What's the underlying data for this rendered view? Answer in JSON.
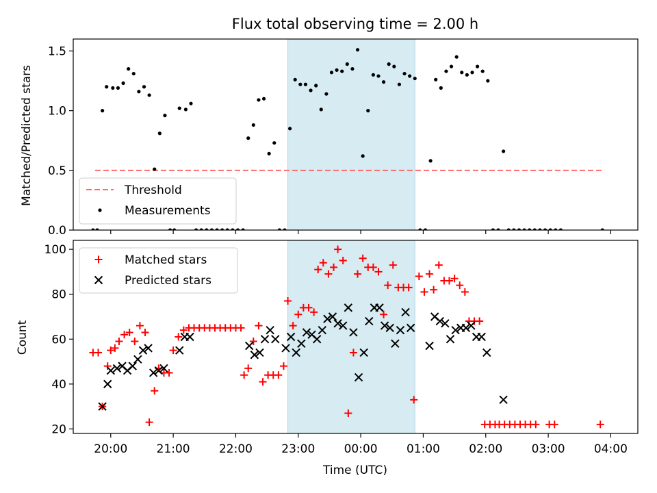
{
  "chart_data": [
    {
      "type": "scatter",
      "title": "Flux total observing time = 2.00 h",
      "xlabel": "",
      "ylabel": "Matched/Predicted stars",
      "xlim": [
        "19:24",
        "04:26"
      ],
      "ylim": [
        0,
        1.6
      ],
      "x_tick_labels": [
        "20:00",
        "21:00",
        "22:00",
        "23:00",
        "00:00",
        "01:00",
        "02:00",
        "03:00",
        "04:00"
      ],
      "y_ticks": [
        0.0,
        0.5,
        1.0,
        1.5
      ],
      "y_tick_labels": [
        "0.0",
        "0.5",
        "1.0",
        "1.5"
      ],
      "highlight": {
        "from": "22:50",
        "to": "00:52",
        "color": "#add8e6"
      },
      "threshold": {
        "name": "Threshold",
        "value": 0.5,
        "x_from": "19:45",
        "x_to": "03:54",
        "color": "#ff6b6b"
      },
      "series": [
        {
          "name": "Measurements",
          "color": "#000000",
          "points": [
            [
              "19:43",
              0
            ],
            [
              "19:47",
              0
            ],
            [
              "19:52",
              1.0
            ],
            [
              "19:56",
              1.2
            ],
            [
              "20:02",
              1.19
            ],
            [
              "20:07",
              1.19
            ],
            [
              "20:12",
              1.23
            ],
            [
              "20:17",
              1.35
            ],
            [
              "20:22",
              1.31
            ],
            [
              "20:27",
              1.16
            ],
            [
              "20:32",
              1.2
            ],
            [
              "20:37",
              1.13
            ],
            [
              "20:42",
              0.51
            ],
            [
              "20:47",
              0.81
            ],
            [
              "20:52",
              0.96
            ],
            [
              "20:57",
              0
            ],
            [
              "21:01",
              0
            ],
            [
              "21:06",
              1.02
            ],
            [
              "21:12",
              1.01
            ],
            [
              "21:17",
              1.06
            ],
            [
              "21:22",
              0
            ],
            [
              "21:27",
              0
            ],
            [
              "21:32",
              0
            ],
            [
              "21:37",
              0
            ],
            [
              "21:42",
              0
            ],
            [
              "21:47",
              0
            ],
            [
              "21:52",
              0
            ],
            [
              "21:57",
              0
            ],
            [
              "22:02",
              0
            ],
            [
              "22:07",
              0
            ],
            [
              "22:12",
              0.77
            ],
            [
              "22:17",
              0.88
            ],
            [
              "22:22",
              1.09
            ],
            [
              "22:27",
              1.1
            ],
            [
              "22:32",
              0.64
            ],
            [
              "22:37",
              0.73
            ],
            [
              "22:42",
              0
            ],
            [
              "22:47",
              0
            ],
            [
              "22:52",
              0.85
            ],
            [
              "22:57",
              1.26
            ],
            [
              "23:02",
              1.22
            ],
            [
              "23:07",
              1.22
            ],
            [
              "23:12",
              1.17
            ],
            [
              "23:17",
              1.21
            ],
            [
              "23:22",
              1.01
            ],
            [
              "23:27",
              1.14
            ],
            [
              "23:32",
              1.32
            ],
            [
              "23:37",
              1.34
            ],
            [
              "23:42",
              1.33
            ],
            [
              "23:47",
              1.39
            ],
            [
              "23:52",
              1.35
            ],
            [
              "23:57",
              1.51
            ],
            [
              "00:02",
              0.62
            ],
            [
              "00:07",
              1.0
            ],
            [
              "00:12",
              1.3
            ],
            [
              "00:17",
              1.29
            ],
            [
              "00:22",
              1.24
            ],
            [
              "00:27",
              1.39
            ],
            [
              "00:32",
              1.37
            ],
            [
              "00:37",
              1.22
            ],
            [
              "00:42",
              1.31
            ],
            [
              "00:47",
              1.29
            ],
            [
              "00:52",
              1.27
            ],
            [
              "00:57",
              0
            ],
            [
              "01:02",
              0
            ],
            [
              "01:07",
              0.58
            ],
            [
              "01:12",
              1.26
            ],
            [
              "01:17",
              1.19
            ],
            [
              "01:22",
              1.33
            ],
            [
              "01:27",
              1.37
            ],
            [
              "01:32",
              1.45
            ],
            [
              "01:37",
              1.32
            ],
            [
              "01:42",
              1.3
            ],
            [
              "01:47",
              1.32
            ],
            [
              "01:52",
              1.37
            ],
            [
              "01:57",
              1.33
            ],
            [
              "02:02",
              1.25
            ],
            [
              "02:07",
              0
            ],
            [
              "02:12",
              0
            ],
            [
              "02:17",
              0.66
            ],
            [
              "02:22",
              0
            ],
            [
              "02:27",
              0
            ],
            [
              "02:32",
              0
            ],
            [
              "02:37",
              0
            ],
            [
              "02:42",
              0
            ],
            [
              "02:47",
              0
            ],
            [
              "02:52",
              0
            ],
            [
              "02:57",
              0
            ],
            [
              "03:02",
              0
            ],
            [
              "03:07",
              0
            ],
            [
              "03:12",
              0
            ],
            [
              "03:52",
              0
            ]
          ]
        }
      ],
      "legend": {
        "position": "lower-left",
        "entries": [
          "Threshold",
          "Measurements"
        ]
      }
    },
    {
      "type": "scatter",
      "title": "",
      "xlabel": "Time (UTC)",
      "ylabel": "Count",
      "xlim": [
        "19:24",
        "04:26"
      ],
      "ylim": [
        18,
        104
      ],
      "x_tick_labels": [
        "20:00",
        "21:00",
        "22:00",
        "23:00",
        "00:00",
        "01:00",
        "02:00",
        "03:00",
        "04:00"
      ],
      "y_ticks": [
        20,
        40,
        60,
        80,
        100
      ],
      "y_tick_labels": [
        "20",
        "40",
        "60",
        "80",
        "100"
      ],
      "highlight": {
        "from": "22:50",
        "to": "00:52",
        "color": "#add8e6"
      },
      "series": [
        {
          "name": "Matched stars",
          "marker": "+",
          "color": "#ff0000",
          "points": [
            [
              "19:43",
              54
            ],
            [
              "19:48",
              54
            ],
            [
              "19:52",
              30
            ],
            [
              "19:57",
              48
            ],
            [
              "20:00",
              55
            ],
            [
              "20:04",
              56
            ],
            [
              "20:08",
              59
            ],
            [
              "20:13",
              62
            ],
            [
              "20:18",
              63
            ],
            [
              "20:23",
              59
            ],
            [
              "20:28",
              66
            ],
            [
              "20:33",
              63
            ],
            [
              "20:37",
              23
            ],
            [
              "20:42",
              37
            ],
            [
              "20:46",
              47
            ],
            [
              "20:51",
              45
            ],
            [
              "20:56",
              45
            ],
            [
              "21:00",
              55
            ],
            [
              "21:05",
              61
            ],
            [
              "21:10",
              64
            ],
            [
              "21:15",
              65
            ],
            [
              "21:20",
              65
            ],
            [
              "21:25",
              65
            ],
            [
              "21:30",
              65
            ],
            [
              "21:35",
              65
            ],
            [
              "21:40",
              65
            ],
            [
              "21:45",
              65
            ],
            [
              "21:50",
              65
            ],
            [
              "21:55",
              65
            ],
            [
              "22:00",
              65
            ],
            [
              "22:05",
              65
            ],
            [
              "22:08",
              44
            ],
            [
              "22:12",
              47
            ],
            [
              "22:17",
              59
            ],
            [
              "22:22",
              66
            ],
            [
              "22:26",
              41
            ],
            [
              "22:31",
              44
            ],
            [
              "22:36",
              44
            ],
            [
              "22:41",
              44
            ],
            [
              "22:46",
              48
            ],
            [
              "22:50",
              77
            ],
            [
              "22:55",
              66
            ],
            [
              "23:00",
              71
            ],
            [
              "23:05",
              74
            ],
            [
              "23:10",
              74
            ],
            [
              "23:15",
              72
            ],
            [
              "23:19",
              91
            ],
            [
              "23:24",
              94
            ],
            [
              "23:29",
              89
            ],
            [
              "23:34",
              92
            ],
            [
              "23:38",
              100
            ],
            [
              "23:43",
              95
            ],
            [
              "23:48",
              27
            ],
            [
              "23:53",
              54
            ],
            [
              "23:57",
              89
            ],
            [
              "00:02",
              96
            ],
            [
              "00:07",
              92
            ],
            [
              "00:12",
              92
            ],
            [
              "00:17",
              90
            ],
            [
              "00:22",
              71
            ],
            [
              "00:26",
              84
            ],
            [
              "00:31",
              93
            ],
            [
              "00:36",
              83
            ],
            [
              "00:41",
              83
            ],
            [
              "00:46",
              83
            ],
            [
              "00:51",
              33
            ],
            [
              "00:56",
              88
            ],
            [
              "01:01",
              81
            ],
            [
              "01:06",
              89
            ],
            [
              "01:10",
              82
            ],
            [
              "01:15",
              93
            ],
            [
              "01:20",
              86
            ],
            [
              "01:25",
              86
            ],
            [
              "01:30",
              87
            ],
            [
              "01:35",
              84
            ],
            [
              "01:40",
              81
            ],
            [
              "01:44",
              68
            ],
            [
              "01:49",
              68
            ],
            [
              "01:54",
              68
            ],
            [
              "01:59",
              22
            ],
            [
              "02:04",
              22
            ],
            [
              "02:09",
              22
            ],
            [
              "02:13",
              22
            ],
            [
              "02:18",
              22
            ],
            [
              "02:23",
              22
            ],
            [
              "02:28",
              22
            ],
            [
              "02:33",
              22
            ],
            [
              "02:38",
              22
            ],
            [
              "02:43",
              22
            ],
            [
              "02:48",
              22
            ],
            [
              "03:01",
              22
            ],
            [
              "03:06",
              22
            ],
            [
              "03:50",
              22
            ]
          ]
        },
        {
          "name": "Predicted stars",
          "marker": "x",
          "color": "#000000",
          "points": [
            [
              "19:52",
              30
            ],
            [
              "19:57",
              40
            ],
            [
              "20:00",
              46
            ],
            [
              "20:06",
              47
            ],
            [
              "20:11",
              48
            ],
            [
              "20:16",
              46
            ],
            [
              "20:21",
              48
            ],
            [
              "20:26",
              51
            ],
            [
              "20:31",
              55
            ],
            [
              "20:36",
              56
            ],
            [
              "20:41",
              45
            ],
            [
              "20:46",
              46
            ],
            [
              "20:51",
              47
            ],
            [
              "21:06",
              55
            ],
            [
              "21:11",
              61
            ],
            [
              "21:16",
              61
            ],
            [
              "22:13",
              57
            ],
            [
              "22:18",
              53
            ],
            [
              "22:23",
              54
            ],
            [
              "22:28",
              60
            ],
            [
              "22:33",
              64
            ],
            [
              "22:38",
              60
            ],
            [
              "22:48",
              56
            ],
            [
              "22:53",
              61
            ],
            [
              "22:58",
              54
            ],
            [
              "23:03",
              58
            ],
            [
              "23:08",
              63
            ],
            [
              "23:13",
              62
            ],
            [
              "23:18",
              60
            ],
            [
              "23:23",
              64
            ],
            [
              "23:28",
              69
            ],
            [
              "23:33",
              70
            ],
            [
              "23:38",
              67
            ],
            [
              "23:43",
              66
            ],
            [
              "23:48",
              74
            ],
            [
              "23:53",
              63
            ],
            [
              "23:58",
              43
            ],
            [
              "00:03",
              54
            ],
            [
              "00:08",
              68
            ],
            [
              "00:13",
              74
            ],
            [
              "00:18",
              74
            ],
            [
              "00:23",
              66
            ],
            [
              "00:28",
              65
            ],
            [
              "00:33",
              58
            ],
            [
              "00:38",
              64
            ],
            [
              "00:43",
              72
            ],
            [
              "00:48",
              65
            ],
            [
              "01:06",
              57
            ],
            [
              "01:11",
              70
            ],
            [
              "01:16",
              68
            ],
            [
              "01:21",
              67
            ],
            [
              "01:26",
              60
            ],
            [
              "01:31",
              64
            ],
            [
              "01:36",
              65
            ],
            [
              "01:41",
              65
            ],
            [
              "01:46",
              66
            ],
            [
              "01:51",
              61
            ],
            [
              "01:56",
              61
            ],
            [
              "02:01",
              54
            ],
            [
              "02:17",
              33
            ]
          ]
        }
      ],
      "legend": {
        "position": "upper-left",
        "entries": [
          "Matched stars",
          "Predicted stars"
        ]
      }
    }
  ]
}
